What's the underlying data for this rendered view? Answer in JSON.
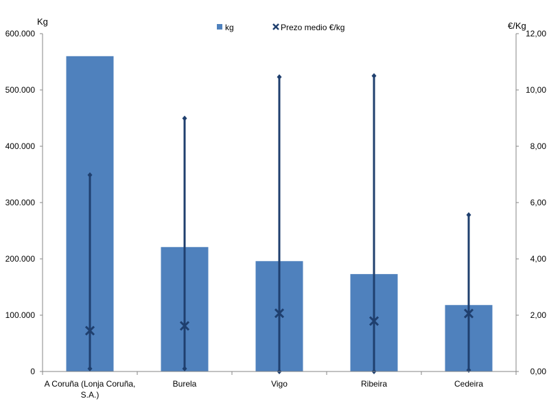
{
  "chart_data": {
    "type": "bar",
    "categories": [
      [
        "A Coruña (Lonja Coruña,",
        "S.A.)"
      ],
      [
        "Burela"
      ],
      [
        "Vigo"
      ],
      [
        "Ribeira"
      ],
      [
        "Cedeira"
      ]
    ],
    "series": [
      {
        "name": "kg",
        "axis": "left",
        "kind": "bar",
        "color": "#4F81BD",
        "values": [
          560000,
          221000,
          196000,
          173000,
          118000
        ]
      },
      {
        "name": "Prezo medio €/kg",
        "axis": "right",
        "kind": "marker-x",
        "color": "#1F3F6E",
        "values": [
          1.45,
          1.62,
          2.07,
          1.79,
          2.06
        ],
        "min": [
          0.1,
          0.1,
          0.0,
          0.0,
          0.05
        ],
        "max": [
          6.98,
          8.99,
          10.46,
          10.5,
          5.56
        ]
      }
    ],
    "y_left": {
      "unit": "Kg",
      "range": [
        0,
        600000
      ],
      "ticks": [
        "0",
        "100.000",
        "200.000",
        "300.000",
        "400.000",
        "500.000",
        "600.000"
      ]
    },
    "y_right": {
      "unit": "€/Kg",
      "range": [
        0,
        12
      ],
      "ticks": [
        "0,00",
        "2,00",
        "4,00",
        "6,00",
        "8,00",
        "10,00",
        "12,00"
      ]
    },
    "legend_position": "top-center",
    "grid": false
  }
}
